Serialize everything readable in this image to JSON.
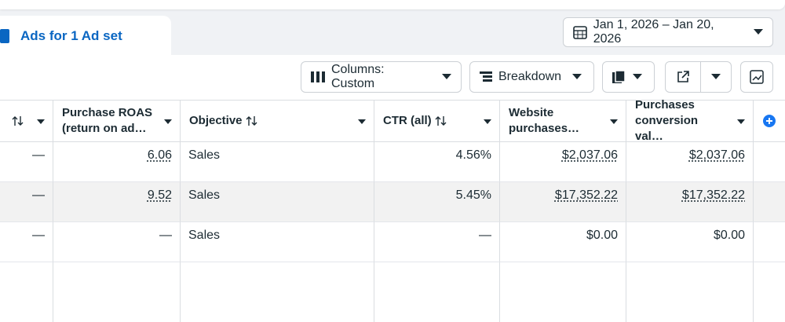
{
  "tab": {
    "label": "Ads for 1 Ad set"
  },
  "toolbar": {
    "date_range": "Jan 1, 2026 – Jan 20, 2026",
    "columns": "Columns: Custom",
    "breakdown": "Breakdown"
  },
  "table": {
    "headers": [
      "Purchase ROAS (return on ad…",
      "Objective",
      "CTR (all)",
      "Website purchases…",
      "Purchases conversion val…"
    ],
    "rows": [
      [
        "—",
        "6.06",
        "Sales",
        "4.56%",
        "$2,037.06",
        "$2,037.06"
      ],
      [
        "—",
        "9.52",
        "Sales",
        "5.45%",
        "$17,352.22",
        "$17,352.22"
      ],
      [
        "—",
        "—",
        "Sales",
        "—",
        "$0.00",
        "$0.00"
      ]
    ]
  }
}
